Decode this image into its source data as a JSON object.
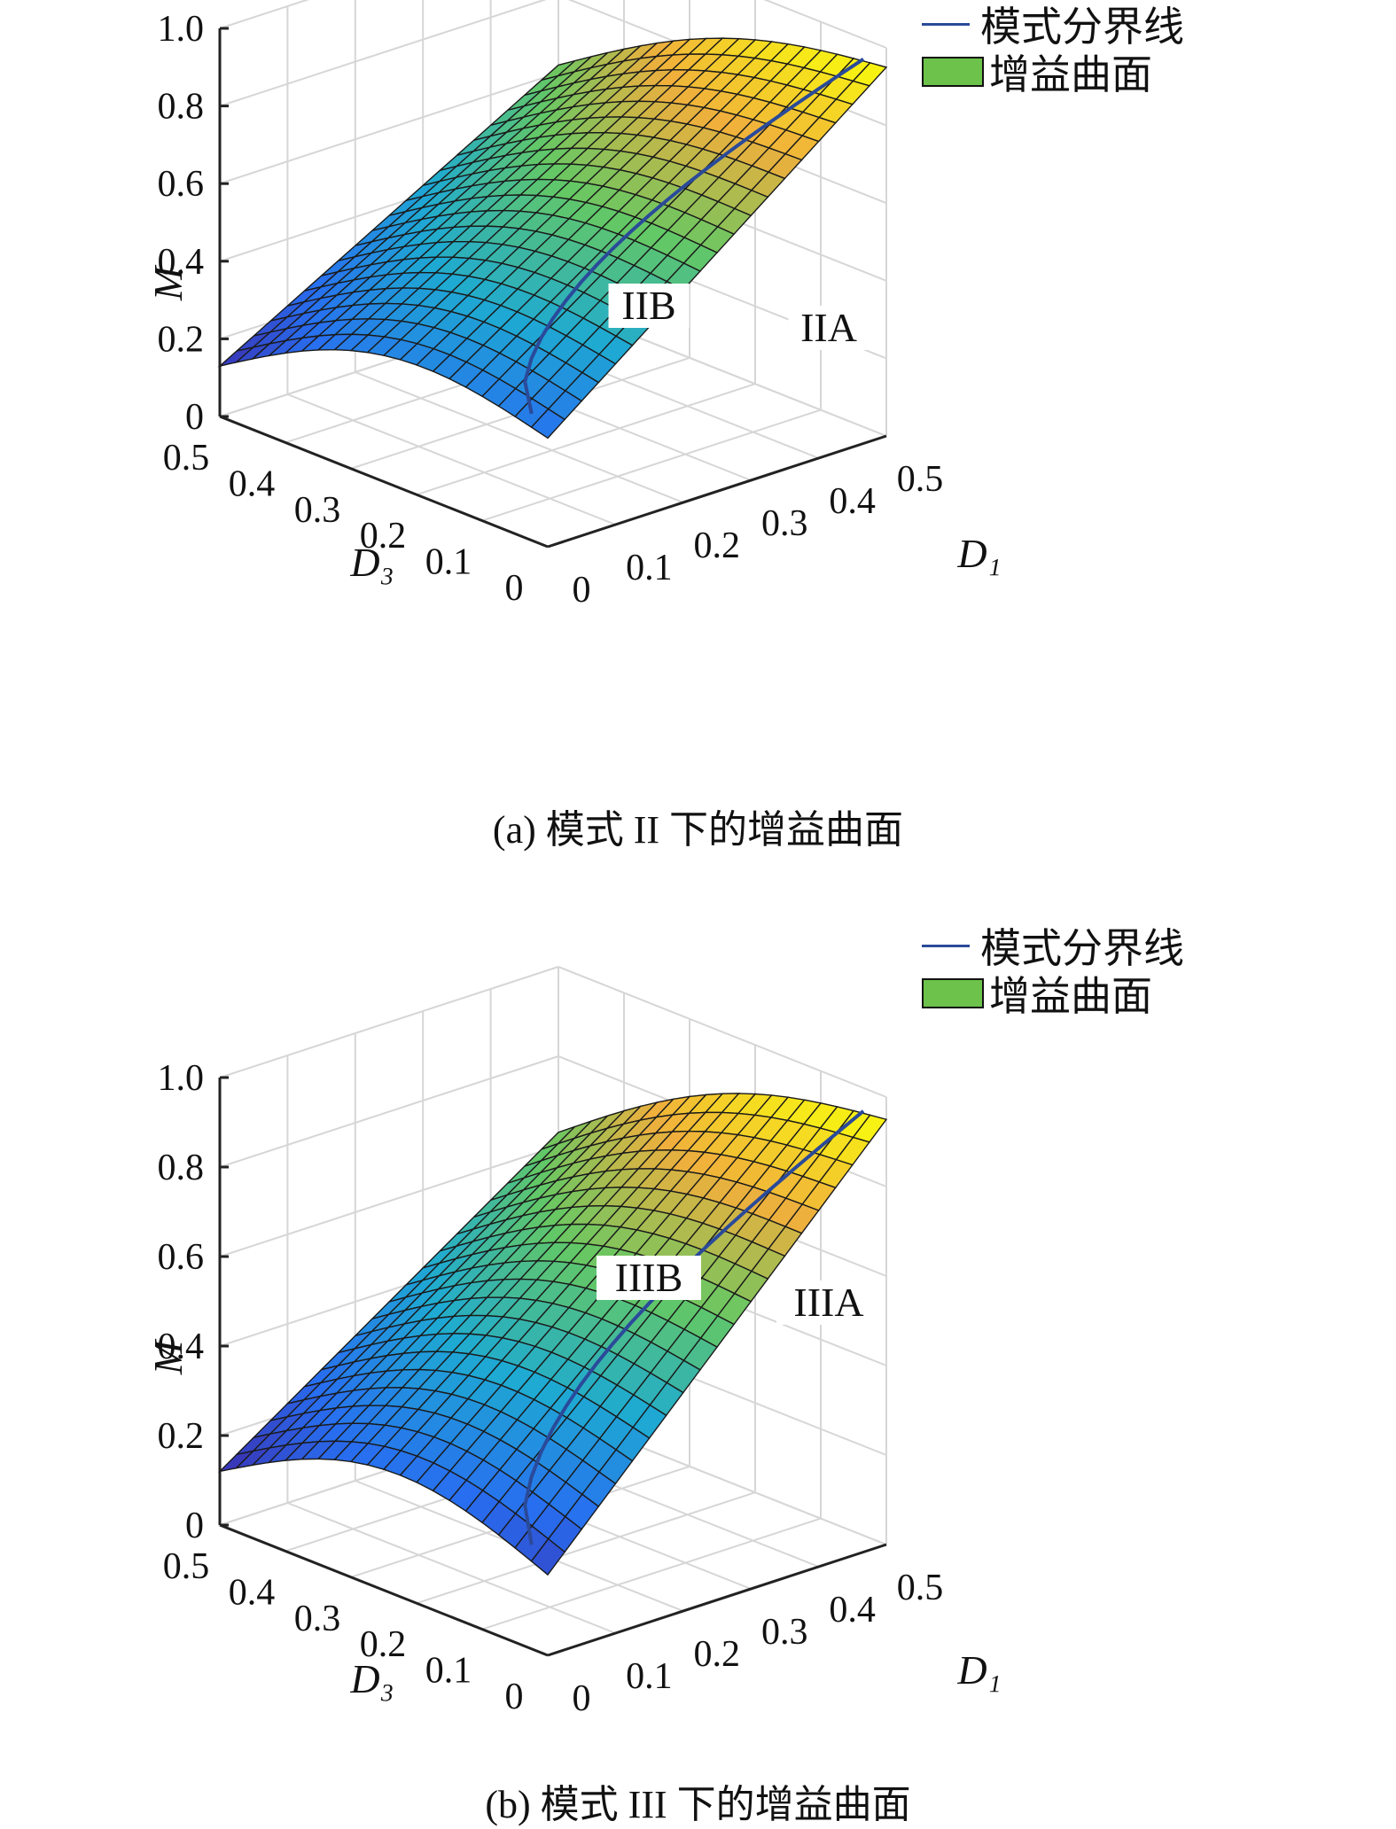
{
  "chart_data": [
    {
      "type": "surface",
      "caption": "(a) 模式 II 下的增益曲面",
      "legend": [
        {
          "label": "模式分界线",
          "color": "#2a4a9a",
          "kind": "line"
        },
        {
          "label": "增益曲面",
          "color": "#6cc24a",
          "kind": "patch"
        }
      ],
      "xlabel": "D₁",
      "ylabel": "D₃",
      "zlabel": "M",
      "xlim": [
        0,
        0.5
      ],
      "ylim": [
        0,
        0.5
      ],
      "zlim": [
        0,
        1.0
      ],
      "x_ticks": [
        "0",
        "0.1",
        "0.2",
        "0.3",
        "0.4",
        "0.5"
      ],
      "y_ticks": [
        "0",
        "0.1",
        "0.2",
        "0.3",
        "0.4",
        "0.5"
      ],
      "z_ticks": [
        "0",
        "0.2",
        "0.4",
        "0.6",
        "0.8",
        "1.0"
      ],
      "region_labels": [
        "IIB",
        "IIA"
      ],
      "corner_values": {
        "D1_0_D3_0.5": 0.13,
        "D1_0_D3_0": 0.28,
        "D1_0.5_D3_0.5": 0.62,
        "D1_0.5_D3_0": 0.95
      },
      "grid": true
    },
    {
      "type": "surface",
      "caption": "(b) 模式 III 下的增益曲面",
      "legend": [
        {
          "label": "模式分界线",
          "color": "#2a4a9a",
          "kind": "line"
        },
        {
          "label": "增益曲面",
          "color": "#6cc24a",
          "kind": "patch"
        }
      ],
      "xlabel": "D₁",
      "ylabel": "D₃",
      "zlabel": "M",
      "xlim": [
        0,
        0.5
      ],
      "ylim": [
        0,
        0.5
      ],
      "zlim": [
        0,
        1.0
      ],
      "x_ticks": [
        "0",
        "0.1",
        "0.2",
        "0.3",
        "0.4",
        "0.5"
      ],
      "y_ticks": [
        "0",
        "0.1",
        "0.2",
        "0.3",
        "0.4",
        "0.5"
      ],
      "z_ticks": [
        "0",
        "0.2",
        "0.4",
        "0.6",
        "0.8",
        "1.0"
      ],
      "region_labels": [
        "IIIB",
        "IIIA"
      ],
      "corner_values": {
        "D1_0_D3_0.5": 0.12,
        "D1_0_D3_0": 0.18,
        "D1_0.5_D3_0.5": 0.63,
        "D1_0.5_D3_0": 0.95
      },
      "grid": true
    }
  ]
}
